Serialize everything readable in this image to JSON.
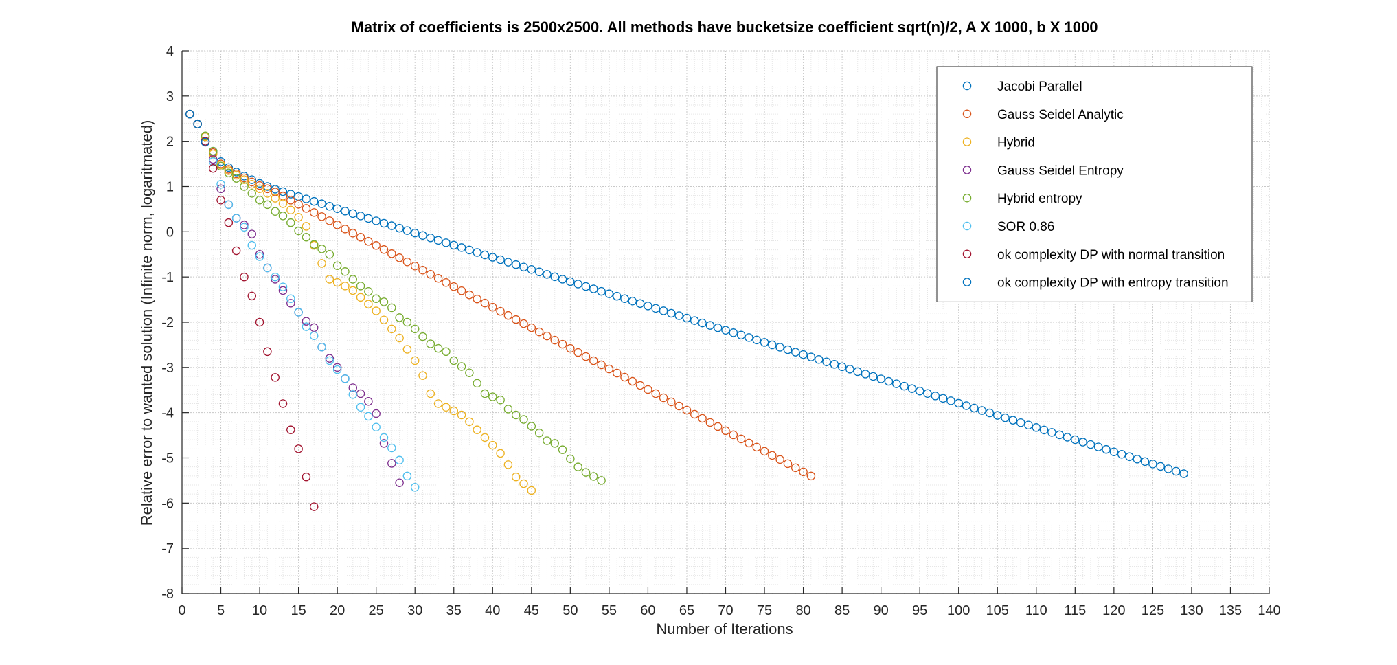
{
  "chart_data": {
    "type": "scatter",
    "title": "Matrix of coefficients is 2500x2500. All methods have bucketsize coefficient sqrt(n)/2, A X 1000, b X 1000",
    "xlabel": "Number of Iterations",
    "ylabel": "Relative error to wanted solution (Infinite norm, logaritmated)",
    "xlim": [
      0,
      140
    ],
    "ylim": [
      -8,
      4
    ],
    "x_ticks": [
      "0",
      "5",
      "10",
      "15",
      "20",
      "25",
      "30",
      "35",
      "40",
      "45",
      "50",
      "55",
      "60",
      "65",
      "70",
      "75",
      "80",
      "85",
      "90",
      "95",
      "100",
      "105",
      "110",
      "115",
      "120",
      "125",
      "130",
      "135",
      "140"
    ],
    "y_ticks": [
      "4",
      "3",
      "2",
      "1",
      "0",
      "-1",
      "-2",
      "-3",
      "-4",
      "-5",
      "-6",
      "-7",
      "-8"
    ],
    "grid": "major and minor, dotted",
    "legend_position": "top-right",
    "series": [
      {
        "name": "Jacobi Parallel",
        "color": "#0072BD",
        "x_start": 1,
        "x_end": 129,
        "points": [
          [
            1,
            2.6
          ],
          [
            2,
            2.38
          ],
          [
            3,
            2.1
          ],
          [
            4,
            1.78
          ],
          [
            5,
            1.55
          ],
          [
            6,
            1.42
          ],
          [
            7,
            1.32
          ],
          [
            8,
            1.23
          ],
          [
            9,
            1.15
          ],
          [
            10,
            1.07
          ],
          [
            11,
            1.0
          ],
          [
            12,
            0.94
          ],
          [
            129,
            -5.35
          ]
        ]
      },
      {
        "name": "Gauss Seidel Analytic",
        "color": "#D95319",
        "x_start": 1,
        "x_end": 81,
        "points": [
          [
            1,
            2.6
          ],
          [
            2,
            2.38
          ],
          [
            3,
            2.1
          ],
          [
            4,
            1.75
          ],
          [
            5,
            1.5
          ],
          [
            6,
            1.38
          ],
          [
            7,
            1.28
          ],
          [
            8,
            1.19
          ],
          [
            9,
            1.1
          ],
          [
            10,
            1.02
          ],
          [
            11,
            0.95
          ],
          [
            12,
            0.88
          ],
          [
            81,
            -5.4
          ]
        ]
      },
      {
        "name": "Hybrid",
        "color": "#EDB120",
        "x_start": 1,
        "x_end": 45,
        "points": [
          [
            1,
            2.6
          ],
          [
            2,
            2.38
          ],
          [
            3,
            2.1
          ],
          [
            4,
            1.72
          ],
          [
            5,
            1.48
          ],
          [
            6,
            1.35
          ],
          [
            7,
            1.25
          ],
          [
            8,
            1.15
          ],
          [
            9,
            1.05
          ],
          [
            10,
            0.95
          ],
          [
            11,
            0.85
          ],
          [
            12,
            0.74
          ],
          [
            13,
            0.62
          ],
          [
            14,
            0.48
          ],
          [
            15,
            0.32
          ],
          [
            16,
            0.12
          ],
          [
            17,
            -0.3
          ],
          [
            18,
            -0.7
          ],
          [
            19,
            -1.05
          ],
          [
            20,
            -1.12
          ],
          [
            21,
            -1.2
          ],
          [
            22,
            -1.3
          ],
          [
            23,
            -1.45
          ],
          [
            24,
            -1.6
          ],
          [
            25,
            -1.75
          ],
          [
            26,
            -1.95
          ],
          [
            27,
            -2.15
          ],
          [
            28,
            -2.35
          ],
          [
            29,
            -2.6
          ],
          [
            30,
            -2.85
          ],
          [
            31,
            -3.18
          ],
          [
            32,
            -3.58
          ],
          [
            33,
            -3.8
          ],
          [
            34,
            -3.88
          ],
          [
            35,
            -3.96
          ],
          [
            36,
            -4.05
          ],
          [
            37,
            -4.2
          ],
          [
            38,
            -4.38
          ],
          [
            39,
            -4.55
          ],
          [
            40,
            -4.72
          ],
          [
            41,
            -4.9
          ],
          [
            42,
            -5.15
          ],
          [
            43,
            -5.42
          ],
          [
            45,
            -5.72
          ]
        ]
      },
      {
        "name": "Gauss Seidel Entropy",
        "color": "#7E2F8E",
        "x_start": 1,
        "x_end": 28,
        "points": [
          [
            1,
            2.6
          ],
          [
            2,
            2.38
          ],
          [
            3,
            2.0
          ],
          [
            4,
            1.6
          ],
          [
            5,
            0.95
          ],
          [
            6,
            0.6
          ],
          [
            7,
            0.3
          ],
          [
            8,
            0.15
          ],
          [
            9,
            -0.05
          ],
          [
            10,
            -0.5
          ],
          [
            11,
            -0.8
          ],
          [
            12,
            -1.05
          ],
          [
            13,
            -1.3
          ],
          [
            14,
            -1.58
          ],
          [
            15,
            -1.78
          ],
          [
            16,
            -1.98
          ],
          [
            17,
            -2.12
          ],
          [
            18,
            -2.55
          ],
          [
            19,
            -2.8
          ],
          [
            20,
            -3.0
          ],
          [
            21,
            -3.25
          ],
          [
            22,
            -3.45
          ],
          [
            23,
            -3.58
          ],
          [
            24,
            -3.75
          ],
          [
            25,
            -4.02
          ],
          [
            26,
            -4.68
          ],
          [
            27,
            -5.12
          ],
          [
            28,
            -5.55
          ]
        ]
      },
      {
        "name": "Hybrid entropy",
        "color": "#77AC30",
        "x_start": 1,
        "x_end": 54,
        "points": [
          [
            1,
            2.6
          ],
          [
            2,
            2.38
          ],
          [
            3,
            2.12
          ],
          [
            4,
            1.78
          ],
          [
            5,
            1.45
          ],
          [
            6,
            1.3
          ],
          [
            7,
            1.18
          ],
          [
            8,
            1.0
          ],
          [
            9,
            0.85
          ],
          [
            10,
            0.7
          ],
          [
            11,
            0.6
          ],
          [
            12,
            0.45
          ],
          [
            13,
            0.35
          ],
          [
            14,
            0.2
          ],
          [
            15,
            0.02
          ],
          [
            16,
            -0.12
          ],
          [
            17,
            -0.28
          ],
          [
            18,
            -0.38
          ],
          [
            19,
            -0.5
          ],
          [
            20,
            -0.75
          ],
          [
            21,
            -0.88
          ],
          [
            22,
            -1.05
          ],
          [
            23,
            -1.2
          ],
          [
            24,
            -1.32
          ],
          [
            25,
            -1.48
          ],
          [
            26,
            -1.55
          ],
          [
            27,
            -1.68
          ],
          [
            28,
            -1.9
          ],
          [
            29,
            -2.0
          ],
          [
            30,
            -2.15
          ],
          [
            31,
            -2.32
          ],
          [
            32,
            -2.48
          ],
          [
            33,
            -2.58
          ],
          [
            34,
            -2.65
          ],
          [
            35,
            -2.85
          ],
          [
            36,
            -2.98
          ],
          [
            37,
            -3.12
          ],
          [
            38,
            -3.35
          ],
          [
            39,
            -3.58
          ],
          [
            40,
            -3.65
          ],
          [
            41,
            -3.72
          ],
          [
            42,
            -3.92
          ],
          [
            43,
            -4.05
          ],
          [
            44,
            -4.15
          ],
          [
            45,
            -4.3
          ],
          [
            46,
            -4.45
          ],
          [
            47,
            -4.62
          ],
          [
            48,
            -4.68
          ],
          [
            49,
            -4.82
          ],
          [
            50,
            -5.02
          ],
          [
            51,
            -5.2
          ],
          [
            52,
            -5.32
          ],
          [
            54,
            -5.5
          ]
        ]
      },
      {
        "name": "SOR 0.86",
        "color": "#4DBEEE",
        "x_start": 1,
        "x_end": 30,
        "points": [
          [
            1,
            2.6
          ],
          [
            2,
            2.38
          ],
          [
            3,
            2.0
          ],
          [
            4,
            1.55
          ],
          [
            5,
            1.05
          ],
          [
            6,
            0.6
          ],
          [
            7,
            0.3
          ],
          [
            8,
            0.1
          ],
          [
            9,
            -0.3
          ],
          [
            10,
            -0.55
          ],
          [
            11,
            -0.8
          ],
          [
            12,
            -1.0
          ],
          [
            13,
            -1.22
          ],
          [
            14,
            -1.48
          ],
          [
            15,
            -1.78
          ],
          [
            16,
            -2.1
          ],
          [
            17,
            -2.3
          ],
          [
            18,
            -2.55
          ],
          [
            19,
            -2.85
          ],
          [
            20,
            -3.05
          ],
          [
            21,
            -3.25
          ],
          [
            22,
            -3.6
          ],
          [
            23,
            -3.88
          ],
          [
            24,
            -4.08
          ],
          [
            25,
            -4.32
          ],
          [
            26,
            -4.55
          ],
          [
            27,
            -4.78
          ],
          [
            28,
            -5.05
          ],
          [
            29,
            -5.4
          ],
          [
            30,
            -5.65
          ]
        ]
      },
      {
        "name": "ok complexity DP with normal transition",
        "color": "#A2142F",
        "x_start": 1,
        "x_end": 17,
        "points": [
          [
            1,
            2.6
          ],
          [
            2,
            2.38
          ],
          [
            3,
            2.0
          ],
          [
            4,
            1.4
          ],
          [
            5,
            0.7
          ],
          [
            6,
            0.2
          ],
          [
            7,
            -0.42
          ],
          [
            8,
            -1.0
          ],
          [
            9,
            -1.42
          ],
          [
            10,
            -2.0
          ],
          [
            11,
            -2.65
          ],
          [
            12,
            -3.22
          ],
          [
            13,
            -3.8
          ],
          [
            14,
            -4.38
          ],
          [
            15,
            -4.8
          ],
          [
            16,
            -5.42
          ],
          [
            17,
            -6.08
          ]
        ]
      },
      {
        "name": "ok complexity DP with entropy transition",
        "color": "#0072BD",
        "x_start": 1,
        "x_end": 3,
        "points": [
          [
            1,
            2.6
          ],
          [
            2,
            2.38
          ],
          [
            3,
            1.98
          ]
        ]
      }
    ]
  }
}
